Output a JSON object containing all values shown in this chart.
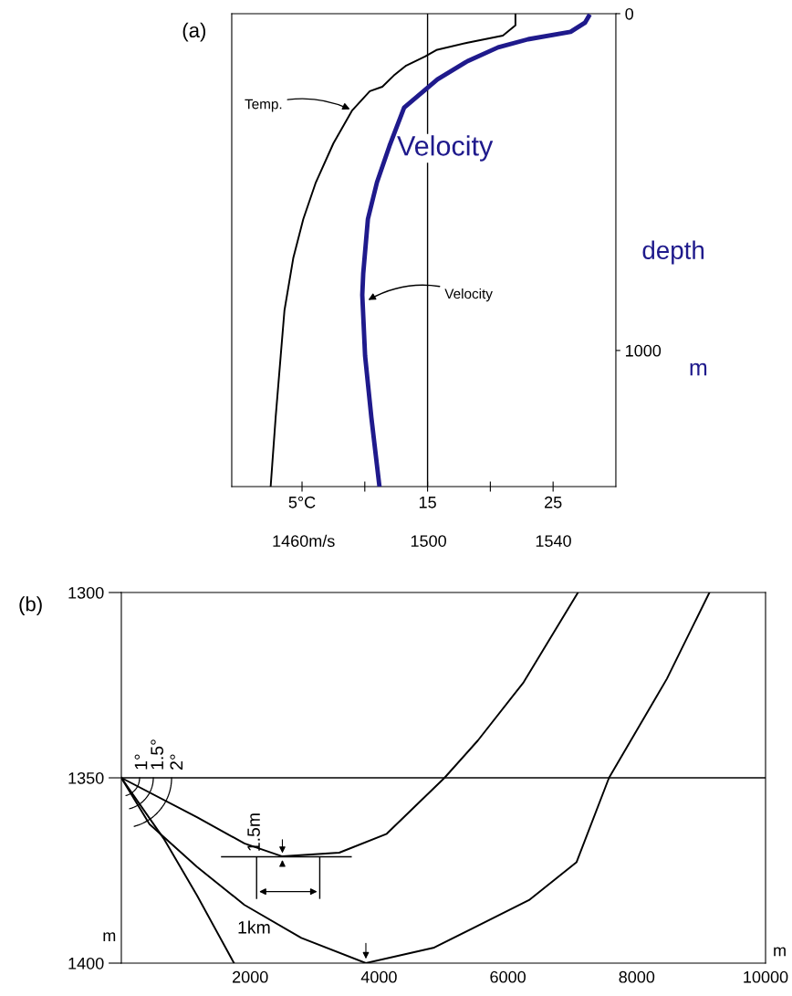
{
  "chart_data": [
    {
      "type": "line",
      "ylabel": "depth",
      "xlim": [
        -0.6,
        30
      ],
      "xticks": [
        {
          "value": 5,
          "label": "5°C"
        },
        {
          "value": 10,
          "label": null
        },
        15,
        {
          "value": 20,
          "label": null
        },
        25
      ],
      "x2lim": [
        1437,
        1560
      ],
      "x2ticks": [
        {
          "value": 1460,
          "label": "1460m/s"
        },
        1500,
        1540
      ],
      "ylim": [
        1404,
        0
      ],
      "yticks": [
        0,
        1000
      ],
      "grid": false,
      "legend": false,
      "marker": "none",
      "line_style": "solid",
      "ref_lines": [
        {
          "axis": "x",
          "value": 15,
          "color": "#000000"
        }
      ],
      "series": [
        {
          "color": "#000000",
          "x": [
            22.0,
            22.0,
            21.0,
            18.1,
            15.7,
            14.8,
            13.3,
            12.3,
            11.4,
            10.4,
            9.0,
            7.5,
            6.1,
            5.1,
            4.3,
            3.6,
            3.3,
            2.9,
            2.5
          ],
          "values": [
            3,
            35,
            65,
            87,
            108,
            127,
            154,
            184,
            217,
            230,
            287,
            385,
            501,
            610,
            726,
            881,
            1016,
            1198,
            1404
          ]
        },
        {
          "name": "Velocity",
          "color": "#1f1a8c",
          "axis": "x2",
          "x": [
            1551.3,
            1550.1,
            1545.5,
            1531.9,
            1522.3,
            1512.5,
            1502.9,
            1492.2,
            1487.5,
            1483.5,
            1480.6,
            1479.1,
            1478.8,
            1479.7,
            1481.7,
            1484.3
          ],
          "values": [
            8,
            27,
            54,
            76,
            100,
            141,
            195,
            279,
            393,
            501,
            610,
            772,
            835,
            1016,
            1198,
            1404
          ]
        }
      ],
      "annotations": [
        "(a)",
        "m",
        {
          "text": "Temp.",
          "x": 9.0,
          "y": 287
        },
        {
          "text": "Velocity",
          "x": 10.1,
          "y": 854
        }
      ]
    },
    {
      "type": "line",
      "xlabel": "m",
      "ylabel": "m",
      "xlim": [
        0,
        10000
      ],
      "xticks": [
        2000,
        4000,
        6000,
        8000,
        10000
      ],
      "ylim": [
        1400,
        1300
      ],
      "yticks": [
        1300,
        1350,
        1400
      ],
      "grid": false,
      "legend": false,
      "marker": "none",
      "line_style": "solid",
      "ref_lines": [
        {
          "axis": "y",
          "value": 1350,
          "color": "#000000"
        }
      ],
      "series": [
        {
          "color": "#000000",
          "x": [
            0,
            1174,
            1911,
            2500,
            3383,
            4120,
            5017,
            5536,
            6245,
            7088
          ],
          "values": [
            1350,
            1360.6,
            1367.7,
            1371.2,
            1370.2,
            1365.1,
            1350,
            1339.9,
            1324.2,
            1300
          ]
        },
        {
          "color": "#000000",
          "x": [
            0,
            437,
            1174,
            1911,
            2794,
            3796,
            4857,
            6329,
            7065,
            7570,
            8468,
            9129
          ],
          "values": [
            1350,
            1362.5,
            1374,
            1384.3,
            1393.2,
            1400,
            1395.8,
            1383,
            1372.8,
            1350,
            1323.3,
            1300
          ]
        },
        {
          "color": "#000000",
          "x": [
            0,
            658,
            1174,
            1749
          ],
          "values": [
            1350,
            1366.4,
            1381.7,
            1400
          ]
        }
      ],
      "annotations": [
        "(b)",
        "1°",
        "1.5°",
        "2°",
        "1.5m",
        "1km"
      ]
    }
  ]
}
